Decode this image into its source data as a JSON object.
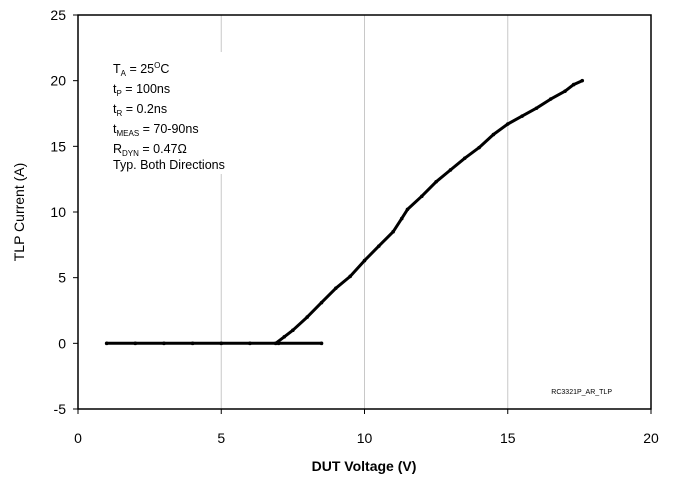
{
  "chart_data": {
    "type": "line",
    "xlabel": "DUT Voltage (V)",
    "ylabel": "TLP Current (A)",
    "xlim": [
      0,
      20
    ],
    "ylim": [
      -5,
      25
    ],
    "xticks": [
      0,
      5,
      10,
      15,
      20
    ],
    "yticks": [
      -5,
      0,
      5,
      10,
      15,
      20,
      25
    ],
    "x_tick_labels": [
      "0",
      "5",
      "10",
      "15",
      "20"
    ],
    "y_tick_labels": [
      "-5",
      "0",
      "5",
      "10",
      "15",
      "20",
      "25"
    ],
    "grid": "vertical",
    "series": [
      {
        "x": [
          1.0,
          2.0,
          3.0,
          4.0,
          5.0,
          6.0,
          7.0,
          8.5
        ],
        "y": [
          0,
          0,
          0,
          0,
          0,
          0,
          0,
          0
        ]
      },
      {
        "x": [
          6.9,
          7.2,
          7.5,
          8.0,
          8.5,
          9.0,
          9.5,
          10.0,
          10.5,
          11.0,
          11.3,
          11.5,
          12.0,
          12.5,
          13.0,
          13.5,
          14.0,
          14.5,
          15.0,
          15.5,
          16.0,
          16.5,
          17.0,
          17.3,
          17.6
        ],
        "y": [
          0.0,
          0.5,
          1.0,
          2.0,
          3.1,
          4.2,
          5.1,
          6.3,
          7.4,
          8.5,
          9.5,
          10.2,
          11.2,
          12.3,
          13.2,
          14.1,
          14.9,
          15.9,
          16.7,
          17.3,
          17.9,
          18.6,
          19.2,
          19.7,
          20.0
        ]
      }
    ],
    "legend_box": {
      "position": "top-left",
      "lines": [
        {
          "main": "T",
          "sub": "A",
          "sup": "",
          "rest": " = 25",
          "sup2": "O",
          "rest2": "C"
        },
        {
          "main": "t",
          "sub": "P",
          "rest": " = 100ns"
        },
        {
          "main": "t",
          "sub": "R",
          "rest": " = 0.2ns"
        },
        {
          "main": "t",
          "sub": "MEAS",
          "rest": " = 70-90ns"
        },
        {
          "main": "R",
          "sub": "DYN",
          "rest": " = 0.47Ω"
        },
        {
          "main": "Typ. Both Directions",
          "sub": "",
          "rest": ""
        }
      ]
    },
    "watermark": "RC3321P_AR_TLP",
    "colors": {
      "line": "#000000",
      "grid": "#c8c8c8",
      "frame": "#000000"
    }
  }
}
